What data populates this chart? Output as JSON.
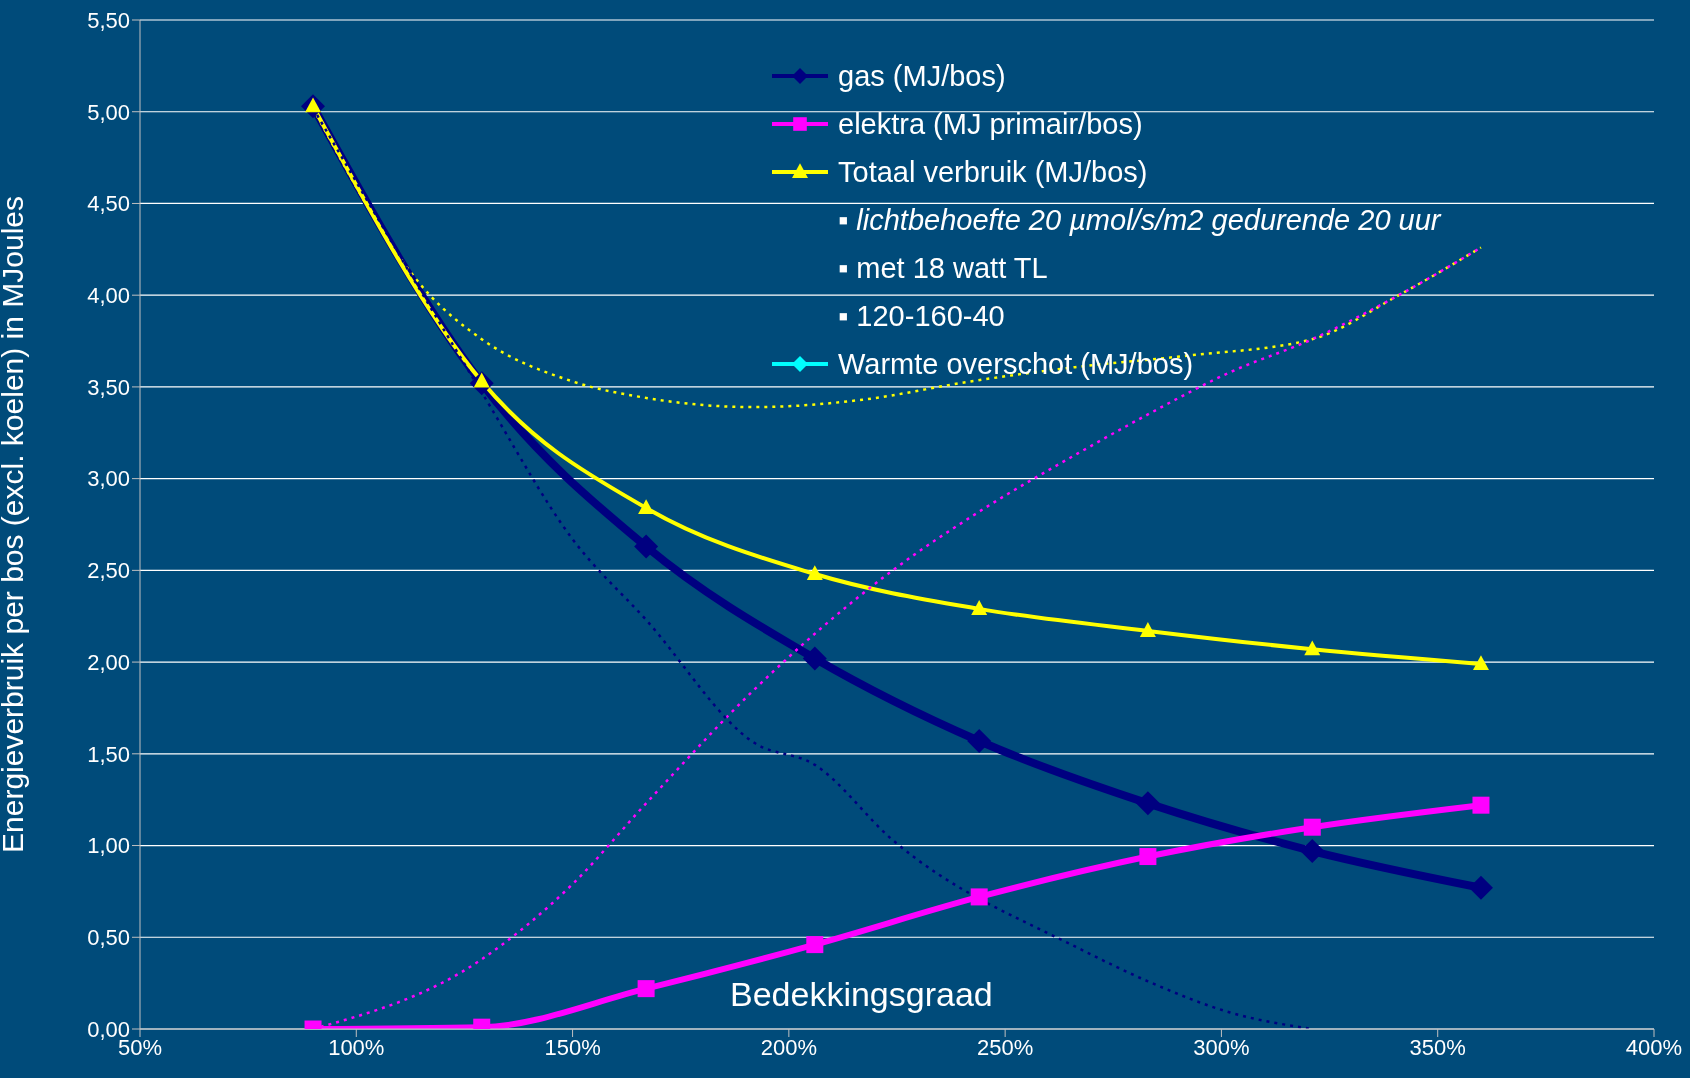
{
  "chart_data": {
    "type": "line",
    "ylabel": "Energieverbruik per bos (excl. koelen) in MJoules",
    "x": [
      90,
      129,
      167,
      206,
      244,
      283,
      321,
      360
    ],
    "xlim": [
      50,
      400
    ],
    "xticks": [
      {
        "value": 50,
        "label": "50%"
      },
      {
        "value": 100,
        "label": "100%"
      },
      {
        "value": 150,
        "label": "150%"
      },
      {
        "value": 200,
        "label": "200%"
      },
      {
        "value": 250,
        "label": "250%"
      },
      {
        "value": 300,
        "label": "300%"
      },
      {
        "value": 350,
        "label": "350%"
      },
      {
        "value": 400,
        "label": "400%"
      }
    ],
    "ylim": [
      0,
      5.5
    ],
    "yticks": [
      {
        "value": 0,
        "label": "0,00"
      },
      {
        "value": 0.5,
        "label": "0,50"
      },
      {
        "value": 1,
        "label": "1,00"
      },
      {
        "value": 1.5,
        "label": "1,50"
      },
      {
        "value": 2,
        "label": "2,00"
      },
      {
        "value": 2.5,
        "label": "2,50"
      },
      {
        "value": 3,
        "label": "3,00"
      },
      {
        "value": 3.5,
        "label": "3,50"
      },
      {
        "value": 4,
        "label": "4,00"
      },
      {
        "value": 4.5,
        "label": "4,50"
      },
      {
        "value": 5,
        "label": "5,00"
      },
      {
        "value": 5.5,
        "label": "5,50"
      }
    ],
    "grid": "y",
    "legend": "top right",
    "annotations": [
      "▪ lichtbehoefte 20 µmol/s/m2 gedurende 20 uur",
      "▪ met 18 watt TL",
      "▪ 120-160-40",
      "Bedekkingsgraad"
    ],
    "series": [
      {
        "name": "gas (MJ/bos)",
        "color": "#000080",
        "marker": "diamond",
        "line_style": "solid",
        "values": [
          5.03,
          3.52,
          2.63,
          2.02,
          1.57,
          1.23,
          0.97,
          0.77
        ]
      },
      {
        "name": "elektra (MJ primair/bos)",
        "color": "#ff00ff",
        "marker": "square",
        "line_style": "solid",
        "values": [
          0.0,
          0.01,
          0.22,
          0.46,
          0.72,
          0.94,
          1.1,
          1.22
        ]
      },
      {
        "name": "Totaal verbruik (MJ/bos)",
        "color": "#ffff00",
        "marker": "triangle",
        "line_style": "solid",
        "values": [
          5.03,
          3.53,
          2.84,
          2.48,
          2.29,
          2.17,
          2.07,
          1.99
        ]
      },
      {
        "name": "Warmte overschot (MJ/bos)",
        "color": "#00ffff",
        "marker": "diamond",
        "line_style": "solid",
        "values": [
          null,
          null,
          null,
          null,
          null,
          null,
          null,
          null
        ]
      },
      {
        "color": "#ffff00",
        "marker": "none",
        "line_style": "dotted",
        "x": [
          90,
          117,
          129,
          150,
          167,
          192,
          217,
          242,
          267,
          292,
          321,
          341,
          360
        ],
        "values": [
          5.02,
          4.0,
          3.76,
          3.53,
          3.44,
          3.39,
          3.43,
          3.53,
          3.61,
          3.67,
          3.76,
          4.0,
          4.26
        ]
      },
      {
        "color": "#ff00ff",
        "marker": "none",
        "line_style": "dotted",
        "x": [
          90,
          129,
          150,
          167,
          192,
          224,
          244,
          267,
          283,
          302,
          321,
          341,
          360
        ],
        "values": [
          0.0,
          0.38,
          0.79,
          1.23,
          1.85,
          2.5,
          2.82,
          3.14,
          3.35,
          3.58,
          3.76,
          4.0,
          4.26
        ]
      },
      {
        "color": "#000080",
        "marker": "none",
        "line_style": "dotted",
        "x": [
          90,
          129,
          150,
          167,
          192,
          206,
          224,
          267,
          283,
          302,
          321
        ],
        "values": [
          5.02,
          3.47,
          2.67,
          2.23,
          1.56,
          1.44,
          1.03,
          0.44,
          0.26,
          0.09,
          0.0
        ]
      }
    ]
  }
}
